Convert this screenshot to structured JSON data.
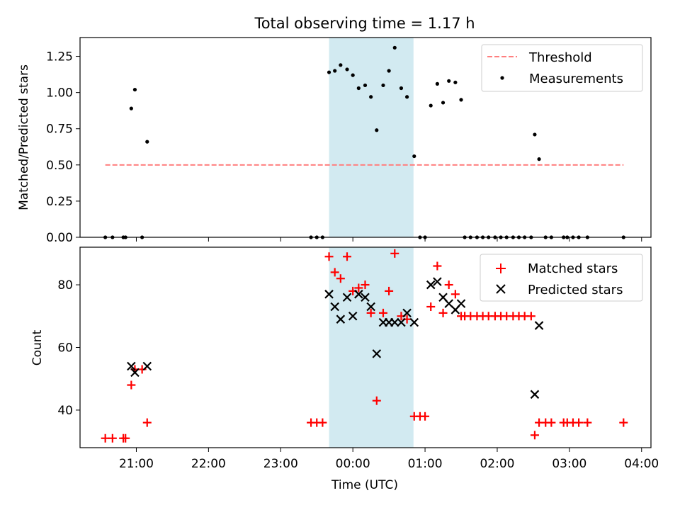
{
  "figure": {
    "title": "Total observing time = 1.17 h",
    "xlabel": "Time (UTC)",
    "x_tick_labels": [
      "21:00",
      "22:00",
      "23:00",
      "00:00",
      "01:00",
      "02:00",
      "03:00",
      "04:00"
    ],
    "x_tick_hours": [
      21,
      22,
      23,
      24,
      25,
      26,
      27,
      28
    ],
    "xlim_hours": [
      20.22,
      28.13
    ],
    "shaded_interval_hours": [
      23.67,
      24.84
    ],
    "colors": {
      "threshold": "#ff7f7f",
      "measurements": "#000000",
      "matched": "#ff0000",
      "predicted": "#000000",
      "shade": "#add8e6"
    }
  },
  "chart_data": [
    {
      "type": "scatter",
      "panel": "top",
      "ylabel": "Matched/Predicted stars",
      "ylim": [
        0,
        1.38
      ],
      "y_ticks": [
        "0.00",
        "0.25",
        "0.50",
        "0.75",
        "1.00",
        "1.25"
      ],
      "y_tick_values": [
        0,
        0.25,
        0.5,
        0.75,
        1.0,
        1.25
      ],
      "legend_position": "upper right",
      "threshold": {
        "name": "Threshold",
        "y": 0.5,
        "x_range": [
          20.57,
          27.75
        ]
      },
      "measurements": {
        "name": "Measurements",
        "x": [
          20.57,
          20.67,
          20.82,
          20.85,
          20.93,
          20.98,
          21.08,
          21.15,
          23.42,
          23.5,
          23.58,
          23.67,
          23.75,
          23.83,
          23.92,
          24.0,
          24.08,
          24.17,
          24.25,
          24.33,
          24.42,
          24.5,
          24.58,
          24.67,
          24.75,
          24.85,
          24.93,
          25.0,
          25.08,
          25.17,
          25.25,
          25.33,
          25.42,
          25.5,
          25.55,
          25.63,
          25.72,
          25.8,
          25.88,
          25.97,
          26.05,
          26.13,
          26.22,
          26.3,
          26.38,
          26.47,
          26.52,
          26.58,
          26.67,
          26.75,
          26.92,
          26.97,
          27.05,
          27.13,
          27.25,
          27.75
        ],
        "y": [
          0,
          0,
          0,
          0,
          0.89,
          1.02,
          0,
          0.66,
          0,
          0,
          0,
          1.14,
          1.15,
          1.19,
          1.16,
          1.12,
          1.03,
          1.05,
          0.97,
          0.74,
          1.05,
          1.15,
          1.31,
          1.03,
          0.97,
          0.56,
          0,
          0,
          0.91,
          1.06,
          0.93,
          1.08,
          1.07,
          0.95,
          0,
          0,
          0,
          0,
          0,
          0,
          0,
          0,
          0,
          0,
          0,
          0,
          0.71,
          0.54,
          0,
          0,
          0,
          0,
          0,
          0,
          0,
          0
        ]
      }
    },
    {
      "type": "scatter",
      "panel": "bottom",
      "ylabel": "Count",
      "ylim": [
        28,
        92
      ],
      "y_ticks": [
        "40",
        "60",
        "80"
      ],
      "y_tick_values": [
        40,
        60,
        80
      ],
      "legend_position": "upper right",
      "series": [
        {
          "name": "Matched stars",
          "marker": "plus",
          "x": [
            20.57,
            20.67,
            20.82,
            20.85,
            20.93,
            20.98,
            21.08,
            21.15,
            23.42,
            23.5,
            23.58,
            23.67,
            23.75,
            23.83,
            23.92,
            24.0,
            24.08,
            24.17,
            24.25,
            24.33,
            24.42,
            24.5,
            24.58,
            24.67,
            24.75,
            24.85,
            24.93,
            25.0,
            25.08,
            25.17,
            25.25,
            25.33,
            25.42,
            25.5,
            25.55,
            25.63,
            25.72,
            25.8,
            25.88,
            25.97,
            26.05,
            26.13,
            26.22,
            26.3,
            26.38,
            26.47,
            26.52,
            26.58,
            26.67,
            26.75,
            26.92,
            26.97,
            27.05,
            27.13,
            27.25,
            27.75
          ],
          "y": [
            31,
            31,
            31,
            31,
            48,
            53,
            53,
            36,
            36,
            36,
            36,
            89,
            84,
            82,
            89,
            78,
            79,
            80,
            71,
            43,
            71,
            78,
            90,
            70,
            69,
            38,
            38,
            38,
            73,
            86,
            71,
            80,
            77,
            70,
            70,
            70,
            70,
            70,
            70,
            70,
            70,
            70,
            70,
            70,
            70,
            70,
            32,
            36,
            36,
            36,
            36,
            36,
            36,
            36,
            36,
            36
          ]
        },
        {
          "name": "Predicted stars",
          "marker": "x",
          "x": [
            20.93,
            20.98,
            21.15,
            23.67,
            23.75,
            23.83,
            23.92,
            24.0,
            24.08,
            24.17,
            24.25,
            24.33,
            24.42,
            24.5,
            24.58,
            24.67,
            24.75,
            24.85,
            25.08,
            25.17,
            25.25,
            25.33,
            25.42,
            25.5,
            26.52,
            26.58
          ],
          "y": [
            54,
            52,
            54,
            77,
            73,
            69,
            76,
            70,
            77,
            76,
            73,
            58,
            68,
            68,
            68,
            68,
            71,
            68,
            80,
            81,
            76,
            74,
            72,
            74,
            45,
            67
          ]
        }
      ]
    }
  ]
}
